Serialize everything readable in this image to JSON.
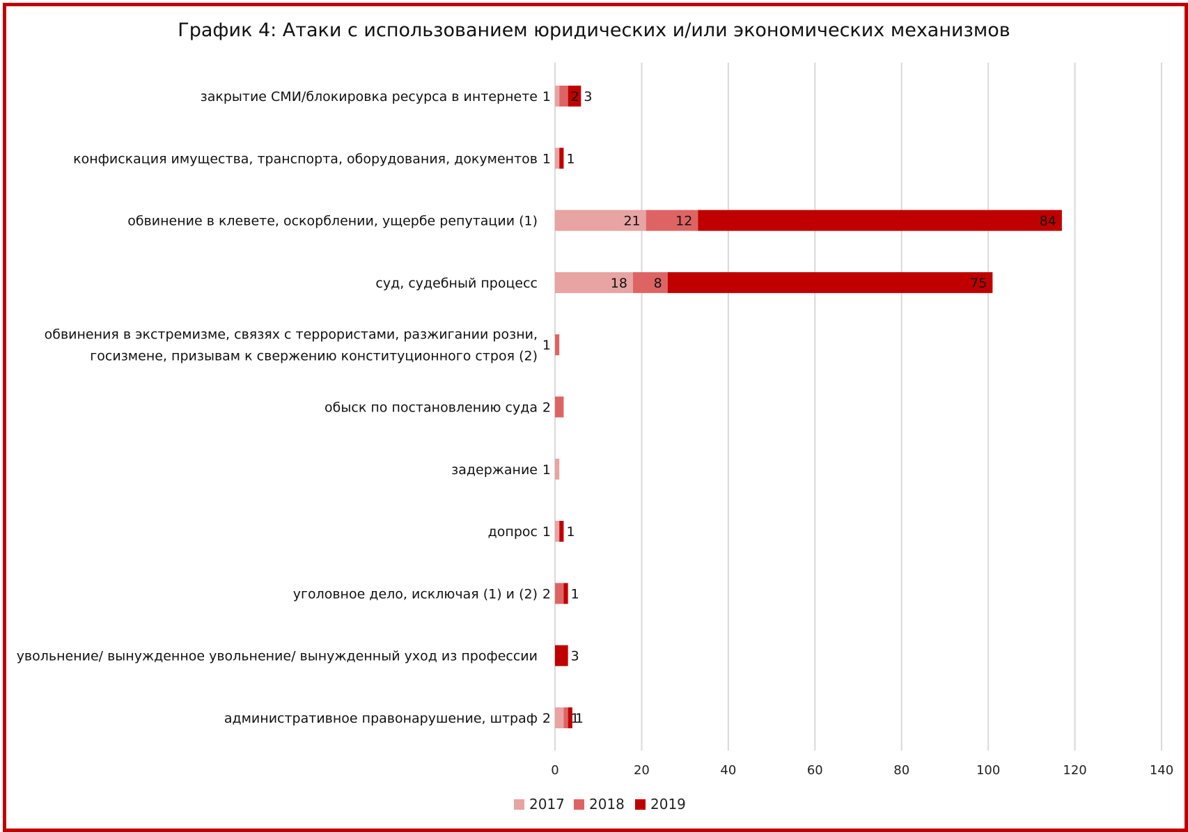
{
  "chart_data": {
    "type": "bar",
    "orientation": "horizontal",
    "stacked": true,
    "title": "График 4: Атаки с использованием юридических и/или экономических механизмов",
    "categories": [
      [
        "закрытие СМИ/блокировка ресурса в интернете"
      ],
      [
        "конфискация имущества, транспорта, оборудования, документов"
      ],
      [
        "обвинение в клевете, оскорблении, ущербе репутации (1)"
      ],
      [
        "суд, судебный процесс"
      ],
      [
        "обвинения в экстремизме, связях с террористами, разжигании розни,",
        "госизмене, призывам к свержению конституционного строя (2)"
      ],
      [
        "обыск по постановлению суда"
      ],
      [
        "задержание"
      ],
      [
        "допрос"
      ],
      [
        "уголовное дело, исключая (1) и (2)"
      ],
      [
        "увольнение/ вынужденное увольнение/ вынужденный уход из профессии"
      ],
      [
        "административное правонарушение, штраф"
      ]
    ],
    "series": [
      {
        "name": "2017",
        "color": "#e8a3a3",
        "values": [
          1,
          1,
          21,
          18,
          0,
          0,
          1,
          1,
          0,
          0,
          2
        ]
      },
      {
        "name": "2018",
        "color": "#de6464",
        "values": [
          2,
          0,
          12,
          8,
          1,
          2,
          0,
          0,
          2,
          0,
          1
        ]
      },
      {
        "name": "2019",
        "color": "#c00000",
        "values": [
          3,
          1,
          84,
          75,
          0,
          0,
          0,
          1,
          1,
          3,
          1
        ]
      }
    ],
    "xlim": [
      0,
      140
    ],
    "xticks": [
      0,
      20,
      40,
      60,
      80,
      100,
      120,
      140
    ],
    "grid": "vertical",
    "legend": "bottom-center"
  },
  "colors": {
    "frame": "#c00000",
    "grid": "#d9d9d9"
  }
}
